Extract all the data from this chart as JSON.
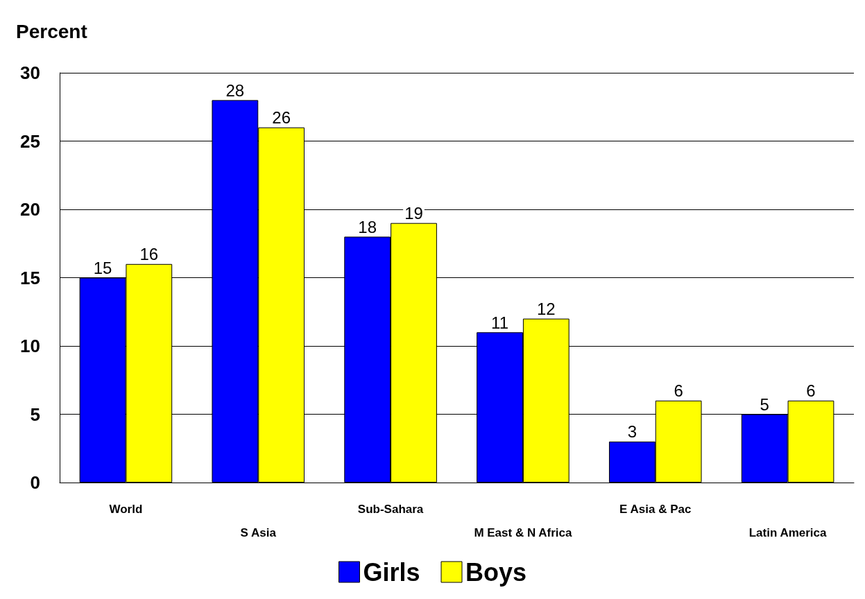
{
  "chart_data": {
    "type": "bar",
    "ylabel": "Percent",
    "categories": [
      "World",
      "S Asia",
      "Sub-Sahara",
      "M East & N Africa",
      "E Asia & Pac",
      "Latin America"
    ],
    "series": [
      {
        "name": "Girls",
        "color": "#0000ff",
        "values": [
          15,
          28,
          18,
          11,
          3,
          5
        ]
      },
      {
        "name": "Boys",
        "color": "#ffff00",
        "values": [
          16,
          26,
          19,
          12,
          6,
          6
        ]
      }
    ],
    "ylim": [
      0,
      30
    ],
    "yticks": [
      0,
      5,
      10,
      15,
      20,
      25,
      30
    ],
    "grid": "y",
    "legend": "bottom",
    "data_labels": true
  }
}
